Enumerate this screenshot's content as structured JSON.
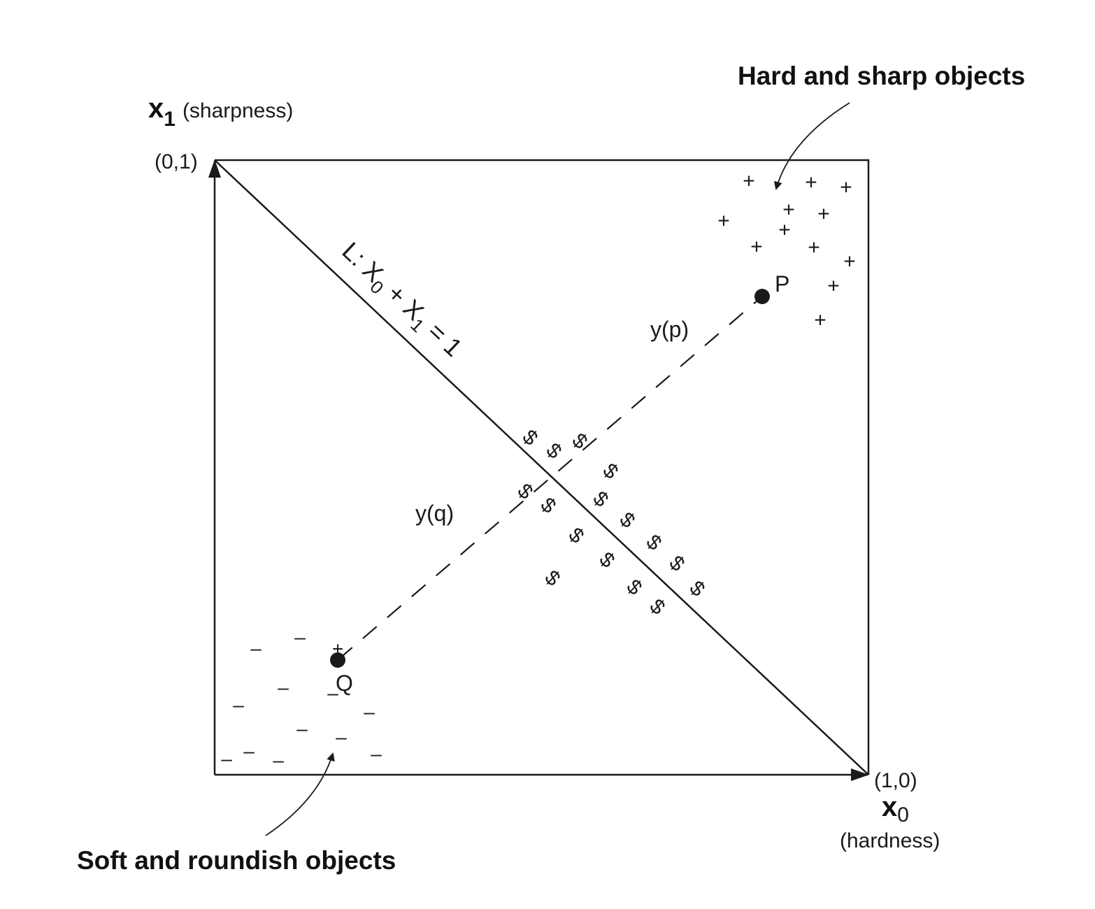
{
  "callouts": {
    "top_right": "Hard and sharp objects",
    "bottom_left": "Soft and roundish objects"
  },
  "axes": {
    "y": {
      "var": "x",
      "sub": "1",
      "desc": "(sharpness)",
      "corner": "(0,1)"
    },
    "x": {
      "var": "x",
      "sub": "0",
      "desc": "(hardness)",
      "corner": "(1,0)"
    }
  },
  "line_L": {
    "prefix": "L: X",
    "sub0": "0",
    "plus": " + X",
    "sub1": "1",
    "suffix": " = 1"
  },
  "points": {
    "p": {
      "label": "P",
      "distance_label": "y(p)"
    },
    "q": {
      "label": "Q",
      "distance_label": "y(q)"
    }
  },
  "markers": {
    "plus": "+",
    "minus": "–",
    "dollar": "$"
  },
  "colors": {
    "ink": "#1a1a1a",
    "background": "#ffffff"
  }
}
